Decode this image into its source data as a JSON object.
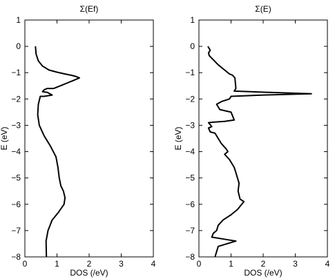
{
  "chart_data": [
    {
      "type": "line",
      "title": "Σ(Ef)",
      "xlabel": "DOS (/eV)",
      "ylabel": "E (eV)",
      "xlim": [
        0,
        4
      ],
      "ylim": [
        -8,
        1
      ],
      "xticks": [
        "0",
        "1",
        "2",
        "3",
        "4"
      ],
      "yticks": [
        "1",
        "0",
        "−1",
        "−2",
        "−3",
        "−4",
        "−5",
        "−6",
        "−7",
        "−8"
      ],
      "series": [
        {
          "x": [
            0.33,
            0.35,
            0.42,
            0.55,
            0.75,
            1.0,
            1.25,
            1.45,
            1.6,
            1.7,
            1.5,
            1.3,
            1.2,
            1.1,
            1.0,
            0.9,
            0.8,
            0.7,
            0.6,
            0.55,
            0.7,
            0.85,
            0.6,
            0.48,
            0.42,
            0.4,
            0.45,
            0.6,
            0.8,
            0.97,
            1.03,
            1.07,
            1.12,
            1.2,
            1.25,
            1.22,
            1.05,
            0.85,
            0.72,
            0.66,
            0.67
          ],
          "y": [
            0.0,
            -0.3,
            -0.55,
            -0.75,
            -0.9,
            -0.98,
            -1.05,
            -1.1,
            -1.15,
            -1.2,
            -1.3,
            -1.4,
            -1.45,
            -1.5,
            -1.55,
            -1.6,
            -1.6,
            -1.6,
            -1.65,
            -1.72,
            -1.75,
            -1.85,
            -1.9,
            -1.9,
            -2.2,
            -2.6,
            -3.0,
            -3.4,
            -3.8,
            -4.2,
            -4.6,
            -5.0,
            -5.3,
            -5.5,
            -5.75,
            -6.0,
            -6.3,
            -6.6,
            -7.0,
            -7.4,
            -8.0
          ]
        }
      ]
    },
    {
      "type": "line",
      "title": "Σ(E)",
      "xlabel": "DOS (/eV)",
      "ylabel": "E (eV)",
      "xlim": [
        0,
        4
      ],
      "ylim": [
        -8,
        1
      ],
      "xticks": [
        "0",
        "1",
        "2",
        "3",
        "4"
      ],
      "yticks": [
        "1",
        "0",
        "−1",
        "−2",
        "−3",
        "−4",
        "−5",
        "−6",
        "−7",
        "−8"
      ],
      "series": [
        {
          "x": [
            0.28,
            0.35,
            0.3,
            0.32,
            0.4,
            0.6,
            0.8,
            0.95,
            1.05,
            1.12,
            1.15,
            1.1,
            2.2,
            3.5,
            2.0,
            1.0,
            0.95,
            0.7,
            0.55,
            0.65,
            1.0,
            1.1,
            0.8,
            0.45,
            0.3,
            0.4,
            0.3,
            0.35,
            0.5,
            0.6,
            0.7,
            0.85,
            0.9,
            0.8,
            0.95,
            1.05,
            1.1,
            1.15,
            1.2,
            1.25,
            1.22,
            1.28,
            1.4,
            1.2,
            1.0,
            0.75,
            0.6,
            0.55,
            0.45,
            0.4,
            0.9,
            1.15,
            0.6,
            0.55,
            0.5
          ],
          "y": [
            0.0,
            -0.15,
            -0.25,
            -0.35,
            -0.45,
            -0.7,
            -0.9,
            -1.05,
            -1.1,
            -1.2,
            -1.6,
            -1.7,
            -1.75,
            -1.8,
            -1.85,
            -1.9,
            -2.0,
            -2.1,
            -2.2,
            -2.4,
            -2.5,
            -2.8,
            -2.85,
            -2.88,
            -2.9,
            -3.05,
            -3.1,
            -3.25,
            -3.3,
            -3.5,
            -3.7,
            -3.9,
            -4.0,
            -4.1,
            -4.3,
            -4.5,
            -4.6,
            -4.8,
            -5.0,
            -5.2,
            -5.5,
            -5.8,
            -5.9,
            -6.2,
            -6.4,
            -6.6,
            -6.8,
            -7.0,
            -7.1,
            -7.25,
            -7.35,
            -7.4,
            -7.6,
            -7.8,
            -8.0
          ]
        }
      ]
    }
  ]
}
